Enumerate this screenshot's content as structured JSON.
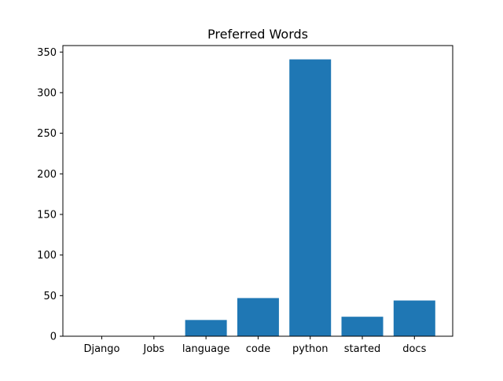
{
  "chart_data": {
    "type": "bar",
    "title": "Preferred Words",
    "xlabel": "",
    "ylabel": "",
    "categories": [
      "Django",
      "Jobs",
      "language",
      "code",
      "python",
      "started",
      "docs"
    ],
    "values": [
      0,
      0,
      20,
      47,
      341,
      24,
      44
    ],
    "ylim": [
      0,
      358
    ],
    "yticks": [
      0,
      50,
      100,
      150,
      200,
      250,
      300,
      350
    ],
    "bar_color": "#1f77b4",
    "grid": false,
    "legend": "none"
  }
}
